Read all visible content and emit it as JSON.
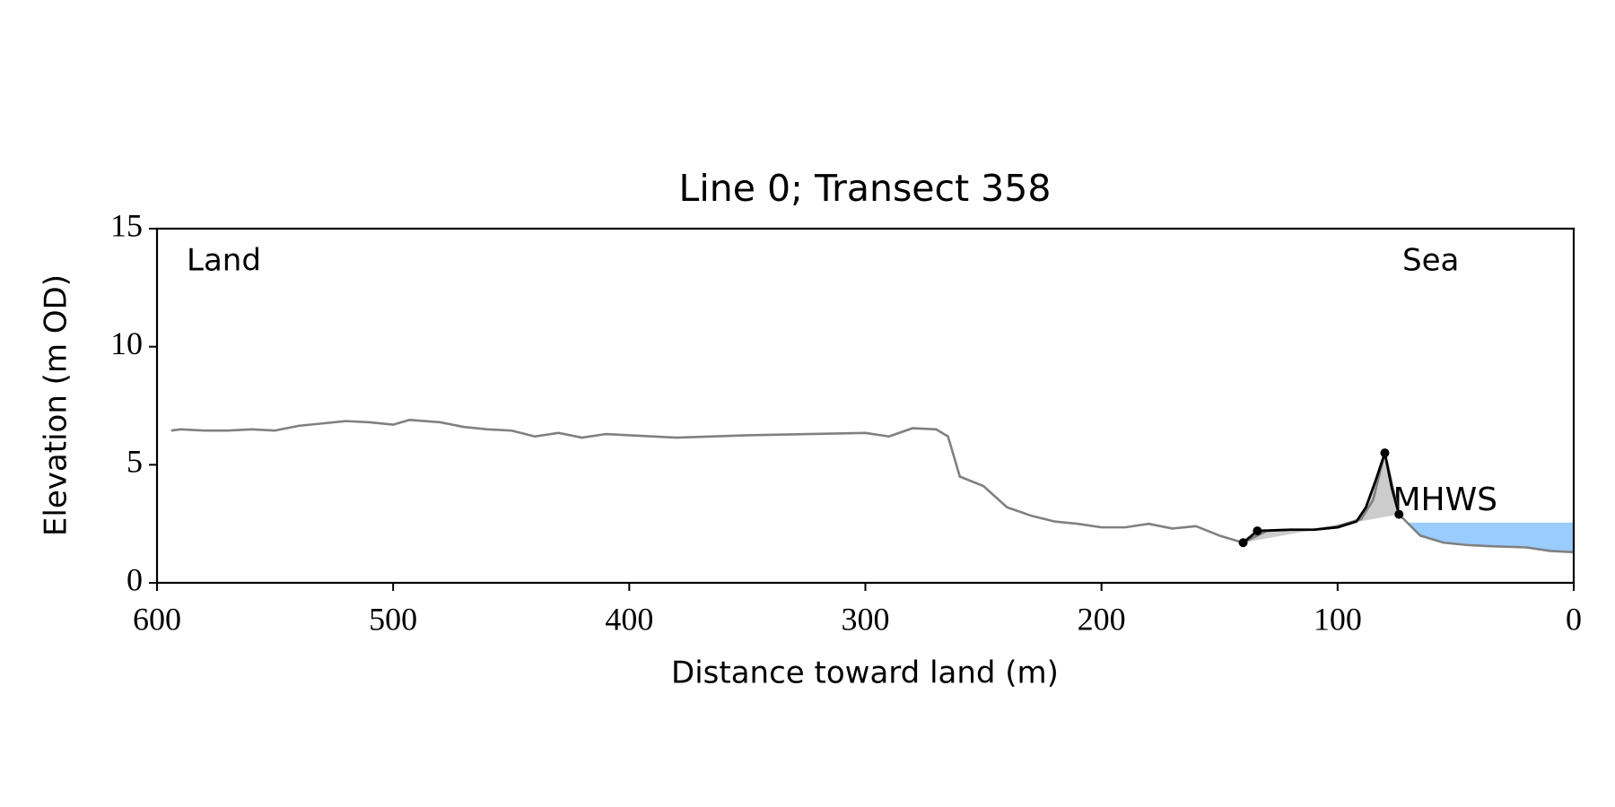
{
  "chart_data": {
    "type": "line",
    "title": "Line 0; Transect 358",
    "x_label": "Distance toward land (m)",
    "y_label": "Elevation (m OD)",
    "annotations": [
      "Land",
      "Sea"
    ],
    "xlim": [
      600,
      0
    ],
    "xticks": [
      600,
      500,
      400,
      300,
      200,
      100,
      0
    ],
    "ylim": [
      0,
      15
    ],
    "yticks": [
      0,
      5,
      10,
      15
    ],
    "series": [
      {
        "color": "#808080",
        "x": [
          594,
          590,
          580,
          570,
          560,
          550,
          540,
          530,
          520,
          510,
          500,
          493,
          480,
          470,
          460,
          450,
          440,
          430,
          420,
          410,
          400,
          380,
          350,
          300,
          290,
          280,
          270,
          265,
          260,
          250,
          240,
          230,
          220,
          210,
          200,
          190,
          180,
          170,
          160,
          150,
          140,
          130,
          120,
          110,
          100,
          90,
          85,
          80,
          74,
          65,
          55,
          45,
          35,
          20,
          10,
          0
        ],
        "values": [
          6.45,
          6.5,
          6.45,
          6.45,
          6.5,
          6.45,
          6.65,
          6.75,
          6.85,
          6.8,
          6.7,
          6.9,
          6.8,
          6.6,
          6.5,
          6.45,
          6.2,
          6.35,
          6.15,
          6.3,
          6.25,
          6.15,
          6.25,
          6.35,
          6.2,
          6.55,
          6.5,
          6.2,
          4.5,
          4.1,
          3.2,
          2.85,
          2.6,
          2.5,
          2.35,
          2.35,
          2.5,
          2.3,
          2.4,
          2.0,
          1.7,
          2.2,
          2.25,
          2.25,
          2.4,
          2.7,
          3.5,
          5.5,
          2.9,
          2.0,
          1.7,
          1.6,
          1.55,
          1.5,
          1.35,
          1.3
        ]
      },
      {
        "color": "#000000",
        "x": [
          140,
          134,
          120,
          110,
          100,
          92,
          88,
          84,
          80,
          77,
          74
        ],
        "values": [
          1.7,
          2.2,
          2.25,
          2.25,
          2.35,
          2.6,
          3.2,
          4.3,
          5.5,
          4.0,
          2.9
        ]
      }
    ],
    "points": {
      "color": "#000000",
      "x": [
        140,
        134,
        80,
        74
      ],
      "values": [
        1.7,
        2.2,
        5.5,
        2.9
      ]
    },
    "dune_fill_color": "#cccccc",
    "mhws": {
      "label": "MHWS",
      "value": 2.55,
      "color": "#99ccff",
      "label_color": "#6699cc"
    }
  }
}
